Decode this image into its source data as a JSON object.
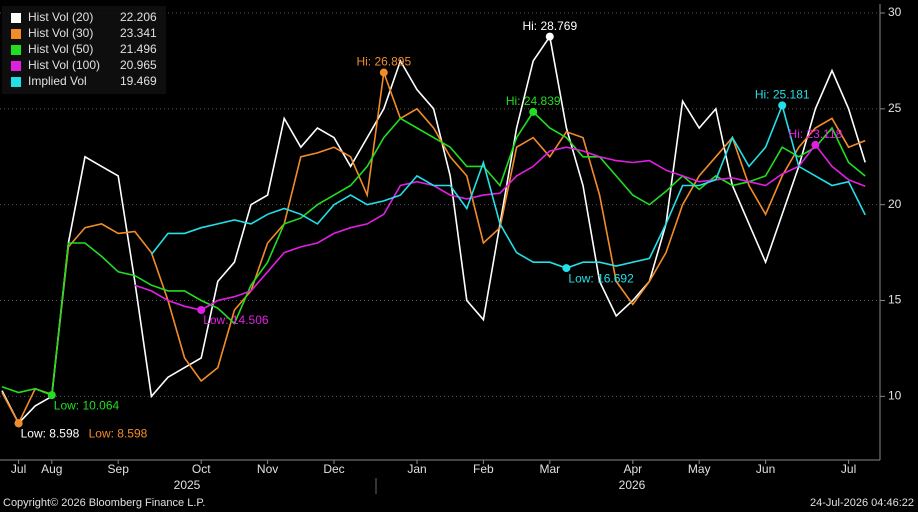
{
  "chart_data": {
    "type": "line",
    "categories": [
      null,
      "Jul",
      null,
      "Aug",
      null,
      null,
      null,
      "Sep",
      null,
      null,
      null,
      null,
      "Oct",
      null,
      null,
      null,
      "Nov",
      null,
      null,
      null,
      "Dec",
      null,
      null,
      null,
      null,
      "Jan",
      null,
      null,
      null,
      "Feb",
      null,
      null,
      null,
      "Mar",
      null,
      null,
      null,
      null,
      "Apr",
      null,
      null,
      null,
      "May",
      null,
      null,
      null,
      "Jun",
      null,
      null,
      null,
      null,
      "Jul",
      null
    ],
    "year_labels": [
      "2025",
      "2026"
    ],
    "ylim": [
      6.68,
      30.47
    ],
    "yticks": [
      10,
      15,
      20,
      25,
      30
    ],
    "grid": true,
    "legend": "top-left",
    "footer_left": "Copyright© 2026 Bloomberg Finance L.P.",
    "footer_right": "24-Jul-2026 04:46:22",
    "series": [
      {
        "name": "Hist Vol (20)",
        "color": "#ffffff",
        "last": 22.206,
        "values": [
          10.3,
          8.598,
          9.5,
          10,
          18,
          22.5,
          22,
          21.5,
          16,
          10,
          11,
          11.5,
          12,
          16,
          17,
          20,
          20.5,
          24.5,
          23,
          24,
          23.5,
          22,
          23.5,
          25,
          27.5,
          26,
          25,
          21.5,
          15,
          14,
          19,
          24,
          27.5,
          28.769,
          24,
          21,
          16,
          14.2,
          15,
          16,
          19,
          25.4,
          24,
          25,
          21,
          19,
          17,
          19.5,
          22,
          25,
          27,
          25,
          22.206
        ],
        "annotations": [
          {
            "text": "Hi: 28.769",
            "value": 28.769
          },
          {
            "text": "Low: 8.598",
            "value": 8.598
          }
        ]
      },
      {
        "name": "Hist Vol (30)",
        "color": "#f28c28",
        "last": 23.341,
        "values": [
          10.2,
          8.598,
          10.4,
          10.1,
          17.8,
          18.8,
          19,
          18.5,
          18.6,
          17.5,
          15,
          12,
          10.8,
          11.5,
          14.5,
          15.5,
          18,
          19,
          22.5,
          22.7,
          23,
          22.5,
          20.5,
          26.895,
          24.5,
          25,
          24,
          22.5,
          21.5,
          18,
          18.8,
          23,
          23.5,
          22.5,
          23.8,
          23.5,
          20.5,
          16,
          14.8,
          16,
          17.5,
          20,
          21.5,
          22.5,
          23.5,
          21,
          19.5,
          21.5,
          23,
          24,
          24.5,
          23,
          23.341
        ],
        "annotations": [
          {
            "text": "Hi: 26.895",
            "value": 26.895
          },
          {
            "text": "Low: 8.598",
            "value": 8.598
          }
        ]
      },
      {
        "name": "Hist Vol (50)",
        "color": "#22dd22",
        "last": 21.496,
        "values": [
          10.5,
          10.2,
          10.4,
          10.064,
          18,
          18,
          17.3,
          16.5,
          16.3,
          15.8,
          15.5,
          15.5,
          15,
          14.6,
          13.8,
          15.8,
          17,
          19,
          19.3,
          20,
          20.5,
          21,
          22,
          23.5,
          24.5,
          24,
          23.5,
          23,
          22,
          22,
          21,
          23.5,
          24.839,
          24,
          23.5,
          22.5,
          22.5,
          21.5,
          20.5,
          20,
          20.7,
          21.5,
          20.8,
          21.5,
          21,
          21.2,
          21.5,
          23,
          22.5,
          23,
          24,
          22.2,
          21.496
        ],
        "annotations": [
          {
            "text": "Hi: 24.839",
            "value": 24.839
          },
          {
            "text": "Low: 10.064",
            "value": 10.064
          }
        ]
      },
      {
        "name": "Hist Vol (100)",
        "color": "#e020e0",
        "last": 20.965,
        "values": [
          null,
          null,
          null,
          null,
          null,
          null,
          null,
          null,
          15.8,
          15.5,
          15,
          14.7,
          14.506,
          15,
          15.2,
          15.5,
          16.5,
          17.5,
          17.8,
          18,
          18.5,
          18.8,
          19,
          19.5,
          21,
          21.2,
          21,
          20.5,
          20.3,
          20.5,
          20.6,
          21.5,
          22,
          22.8,
          23,
          22.8,
          22.5,
          22.3,
          22.2,
          22.3,
          21.8,
          21.5,
          21.2,
          21.3,
          21.4,
          21.2,
          21,
          21.6,
          22,
          23.118,
          22,
          21.3,
          20.965
        ],
        "annotations": [
          {
            "text": "Hi: 23.118",
            "value": 23.118
          },
          {
            "text": "Low: 14.506",
            "value": 14.506
          }
        ]
      },
      {
        "name": "Implied Vol",
        "color": "#22e0e8",
        "last": 19.469,
        "values": [
          null,
          null,
          null,
          null,
          null,
          null,
          null,
          null,
          null,
          17.4,
          18.5,
          18.5,
          18.8,
          19,
          19.2,
          19,
          19.5,
          19.8,
          19.5,
          19,
          20,
          20.5,
          20,
          20.2,
          20.5,
          21.5,
          21,
          21,
          19.8,
          22.2,
          19,
          17.5,
          17,
          17,
          16.692,
          17,
          17,
          16.8,
          17,
          17.2,
          19,
          21,
          21,
          21.3,
          23.5,
          22,
          23,
          25.181,
          22,
          21.5,
          21,
          21.2,
          19.469
        ],
        "annotations": [
          {
            "text": "Hi: 25.181",
            "value": 25.181
          },
          {
            "text": "Low: 16.692",
            "value": 16.692
          }
        ]
      }
    ]
  }
}
